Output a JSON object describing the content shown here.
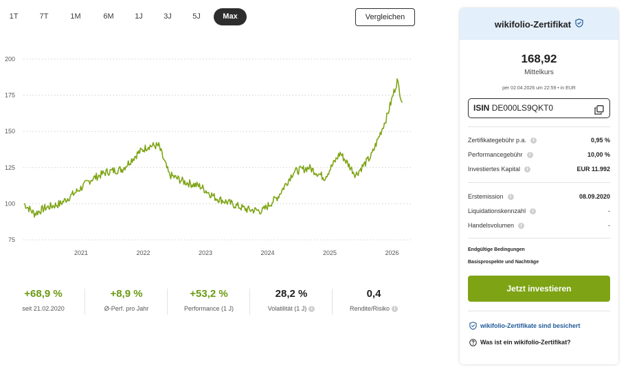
{
  "tabs": [
    {
      "label": "1T",
      "active": false
    },
    {
      "label": "7T",
      "active": false
    },
    {
      "label": "1M",
      "active": false
    },
    {
      "label": "6M",
      "active": false
    },
    {
      "label": "1J",
      "active": false
    },
    {
      "label": "3J",
      "active": false
    },
    {
      "label": "5J",
      "active": false
    },
    {
      "label": "Max",
      "active": true
    }
  ],
  "compare_label": "Vergleichen",
  "chart_data": {
    "type": "line",
    "y_ticks": [
      200,
      175,
      150,
      125,
      100,
      75
    ],
    "x_ticks": [
      "2021",
      "2022",
      "2023",
      "2024",
      "2025",
      "2026"
    ],
    "ylim": [
      75,
      200
    ],
    "grid": true,
    "line_color": "#7ea416",
    "series": [
      {
        "x": [
          "2020-02",
          "2020-04",
          "2020-06",
          "2020-09",
          "2020-12",
          "2021-03",
          "2021-06",
          "2021-09",
          "2021-12",
          "2022-02",
          "2022-04",
          "2022-06",
          "2022-09",
          "2022-12",
          "2023-03",
          "2023-06",
          "2023-09",
          "2023-12",
          "2024-03",
          "2024-06",
          "2024-09",
          "2024-12",
          "2025-03",
          "2025-06",
          "2025-09",
          "2025-12",
          "2026-02",
          "2026-03"
        ],
        "values": [
          100,
          93,
          97,
          100,
          108,
          117,
          122,
          124,
          135,
          140,
          140,
          120,
          115,
          112,
          104,
          100,
          96,
          95,
          105,
          122,
          125,
          118,
          135,
          120,
          133,
          160,
          185,
          170
        ]
      }
    ]
  },
  "stats": [
    {
      "value": "+68,9 %",
      "label": "seit 21.02.2020",
      "green": true,
      "info": false
    },
    {
      "value": "+8,9 %",
      "label": "Ø-Perf. pro Jahr",
      "green": true,
      "info": false
    },
    {
      "value": "+53,2 %",
      "label": "Performance (1 J)",
      "green": true,
      "info": false
    },
    {
      "value": "28,2 %",
      "label": "Volatilität (1 J)",
      "green": false,
      "info": true
    },
    {
      "value": "0,4",
      "label": "Rendite/Risiko",
      "green": false,
      "info": true
    }
  ],
  "card": {
    "title": "wikifolio-Zertifikat",
    "price": "168,92",
    "price_label": "Mittelkurs",
    "price_meta": "per 02.04.2026 um 22:59 • in EUR",
    "isin_label": "ISIN",
    "isin_value": "DE000LS9QKT0",
    "fees": [
      {
        "key": "Zertifikategebühr p.a.",
        "value": "0,95 %"
      },
      {
        "key": "Performancegebühr",
        "value": "10,00 %"
      },
      {
        "key": "Investiertes Kapital",
        "value": "EUR 11.992"
      }
    ],
    "details": [
      {
        "key": "Erstemission",
        "value": "08.09.2020"
      },
      {
        "key": "Liquidationskennzahl",
        "value": "-"
      },
      {
        "key": "Handelsvolumen",
        "value": "-"
      }
    ],
    "link_terms": "Endgültige Bedingungen",
    "link_prospect": "Basisprospekte und Nachträge",
    "invest_label": "Jetzt investieren",
    "secure_label": "wikifolio-Zertifikate sind besichert",
    "whatis_label": "Was ist ein wikifolio-Zertifikat?"
  }
}
